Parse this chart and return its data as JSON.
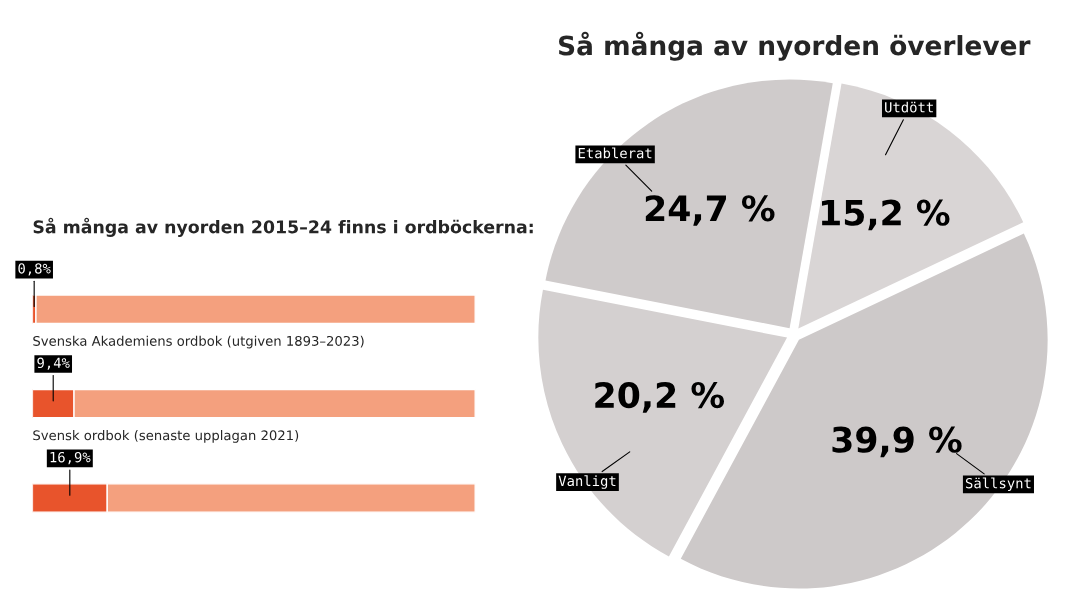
{
  "chart_data": [
    {
      "type": "pie",
      "title": "Så många av nyorden överlever",
      "categories": [
        "Utdött",
        "Sällsynt",
        "Vanligt",
        "Etablerat"
      ],
      "values": [
        15.2,
        39.9,
        20.2,
        24.7
      ],
      "colors": [
        "#d9d5d5",
        "#cdc9c9",
        "#d4d0d0",
        "#cfcbcb"
      ],
      "value_labels": [
        "15,2 %",
        "39,9 %",
        "20,2 %",
        "24,7 %"
      ],
      "legend": false
    },
    {
      "type": "bar",
      "orientation": "horizontal",
      "stacked": true,
      "title": "Så många av nyorden 2015–24 finns i ordböckerna:",
      "categories": [
        "Svenska Akademiens ordbok (utgiven 1893–2023)",
        "Svensk ordbok (senaste upplagan 2021)",
        null
      ],
      "series": [
        {
          "color": "#e8542c",
          "values": [
            0.8,
            9.4,
            16.9
          ],
          "value_labels": [
            "0,8%",
            "9,4%",
            "16,9%"
          ]
        },
        {
          "color": "#f4a07e",
          "values": [
            99.2,
            90.6,
            83.1
          ]
        }
      ],
      "xlim": [
        0,
        100
      ],
      "tick_labels": false
    }
  ]
}
